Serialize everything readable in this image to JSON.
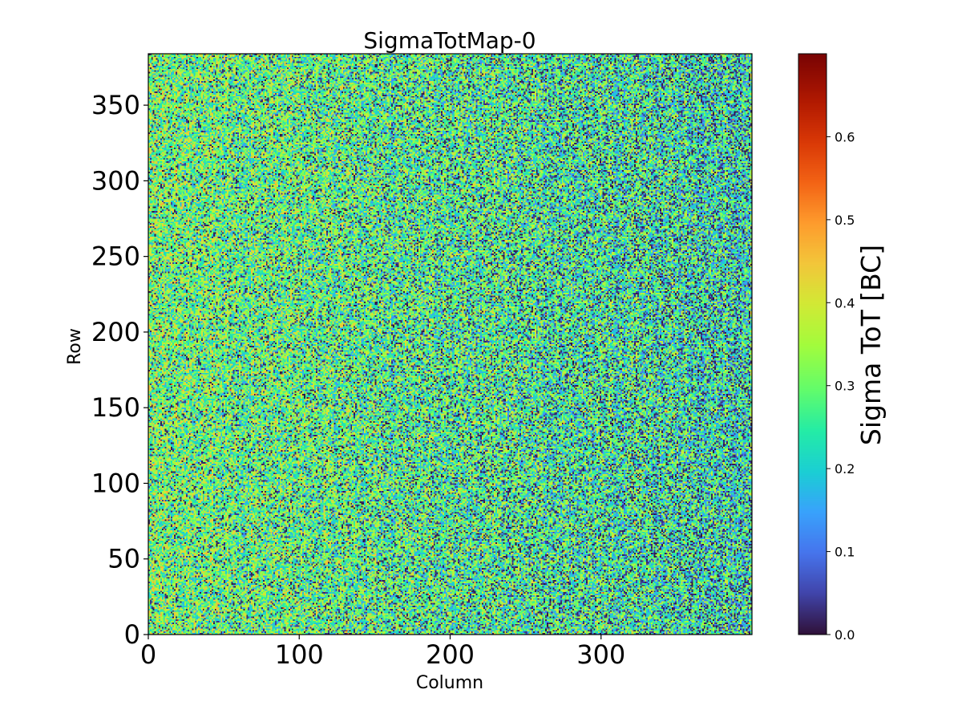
{
  "chart_data": {
    "type": "heatmap",
    "title": "SigmaTotMap-0",
    "xlabel": "Column",
    "ylabel": "Row",
    "xlim": [
      0,
      400
    ],
    "ylim": [
      0,
      384
    ],
    "x_ticks": [
      0,
      100,
      200,
      300
    ],
    "y_ticks": [
      0,
      50,
      100,
      150,
      200,
      250,
      300,
      350
    ],
    "colorbar": {
      "label": "Sigma ToT [BC]",
      "range": [
        0.0,
        0.7
      ],
      "ticks": [
        0.0,
        0.1,
        0.2,
        0.3,
        0.4,
        0.5,
        0.6
      ],
      "tick_labels": [
        "0.0",
        "0.1",
        "0.2",
        "0.3",
        "0.4",
        "0.5",
        "0.6"
      ],
      "colormap": "turbo"
    },
    "grid": {
      "columns": 400,
      "rows": 384,
      "typical_value": 0.25,
      "value_spread": 0.3,
      "dead_pixel_value": 0.0,
      "notes": "Dense noisy map; values mostly 0.1-0.45 with many near-zero pixels, higher on left side"
    }
  }
}
